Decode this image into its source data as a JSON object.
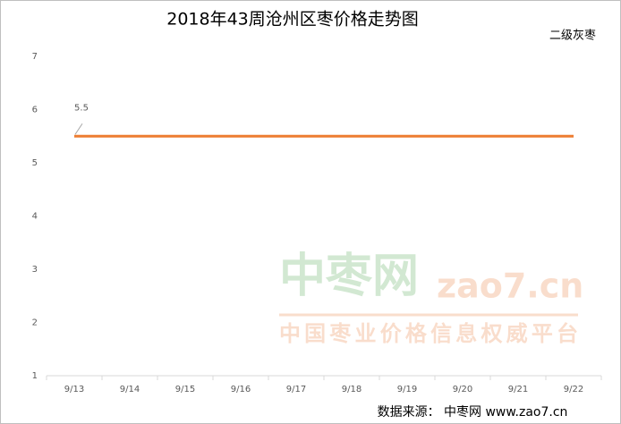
{
  "chart_data": {
    "type": "line",
    "title": "2018年43周沧州区枣价格走势图",
    "categories": [
      "9/13",
      "9/14",
      "9/15",
      "9/16",
      "9/17",
      "9/18",
      "9/19",
      "9/20",
      "9/21",
      "9/22"
    ],
    "series": [
      {
        "name": "二级灰枣",
        "color": "#ed7d31",
        "values": [
          5.5,
          5.5,
          5.5,
          5.5,
          5.5,
          5.5,
          5.5,
          5.5,
          5.5,
          5.5
        ]
      }
    ],
    "ylim": [
      1,
      7
    ],
    "yticks": [
      1,
      2,
      3,
      4,
      5,
      6,
      7
    ],
    "grid": false,
    "watermark": {
      "brand": "中枣网",
      "site": "zao7.cn",
      "slogan": "中国枣业价格信息权威平台"
    },
    "source": "数据来源：  中枣网 www.zao7.cn"
  }
}
